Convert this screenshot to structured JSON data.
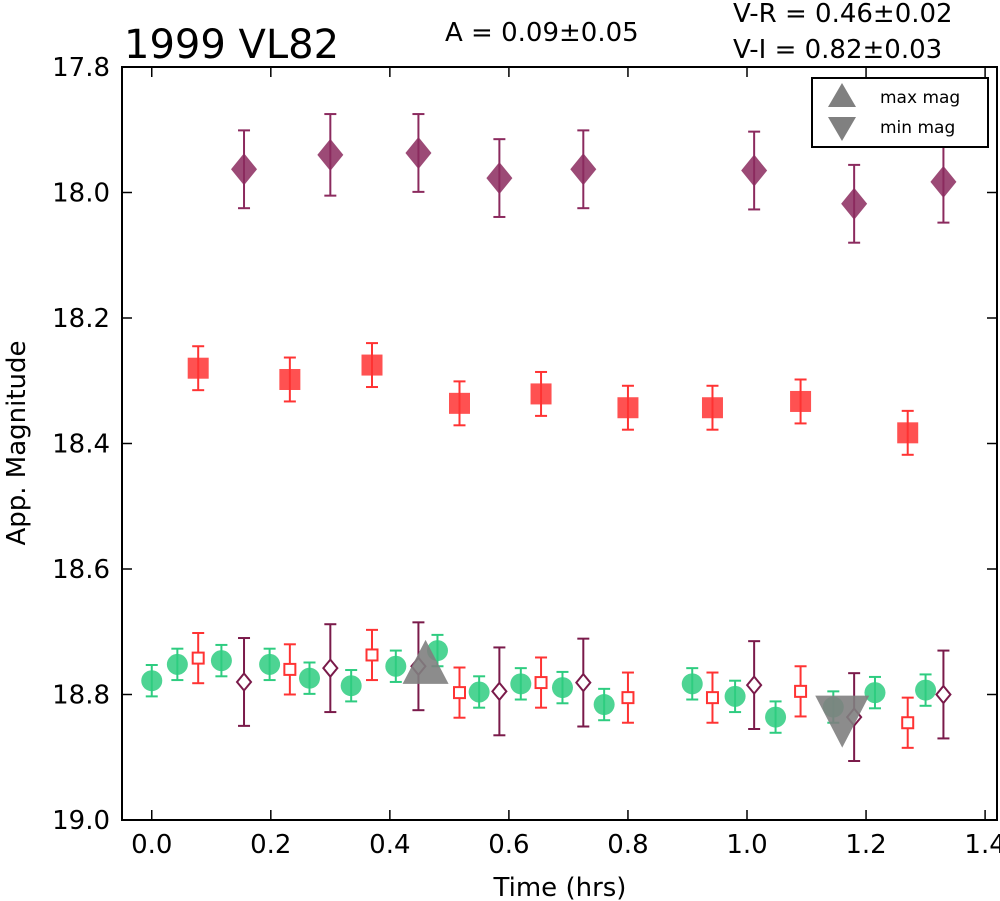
{
  "chart_data": {
    "type": "scatter",
    "title": "1999 VL82",
    "annotations": {
      "amplitude": "A  = 0.09±0.05",
      "v_r": "V-R = 0.46±0.02",
      "v_i": "V-I  = 0.82±0.03"
    },
    "xlabel": "Time (hrs)",
    "ylabel": "App. Magnitude",
    "xlim": [
      -0.05,
      1.42
    ],
    "ylim": [
      17.8,
      19.0
    ],
    "y_inverted": true,
    "xticks": [
      "0.0",
      "0.2",
      "0.4",
      "0.6",
      "0.8",
      "1.0",
      "1.2",
      "1.4"
    ],
    "yticks": [
      "17.8",
      "18.0",
      "18.2",
      "18.4",
      "18.6",
      "18.8",
      "19.0"
    ],
    "legend": {
      "placement": "top-right",
      "entries": [
        {
          "label": "max mag",
          "marker": "triangle-up"
        },
        {
          "label": "min mag",
          "marker": "triangle-down"
        }
      ]
    },
    "series": [
      {
        "marker": "diamond",
        "filled": true,
        "color": "#8b2a5e",
        "points": [
          {
            "x": 0.155,
            "y": 17.963,
            "err": 0.062
          },
          {
            "x": 0.3,
            "y": 17.94,
            "err": 0.065
          },
          {
            "x": 0.448,
            "y": 17.937,
            "err": 0.062
          },
          {
            "x": 0.584,
            "y": 17.977,
            "err": 0.062
          },
          {
            "x": 0.725,
            "y": 17.963,
            "err": 0.062
          },
          {
            "x": 1.012,
            "y": 17.965,
            "err": 0.062
          },
          {
            "x": 1.18,
            "y": 18.018,
            "err": 0.062
          },
          {
            "x": 1.33,
            "y": 17.983,
            "err": 0.065
          }
        ]
      },
      {
        "marker": "square",
        "filled": true,
        "color": "#ff3333",
        "points": [
          {
            "x": 0.078,
            "y": 18.28,
            "err": 0.035
          },
          {
            "x": 0.232,
            "y": 18.298,
            "err": 0.035
          },
          {
            "x": 0.37,
            "y": 18.275,
            "err": 0.035
          },
          {
            "x": 0.517,
            "y": 18.336,
            "err": 0.035
          },
          {
            "x": 0.654,
            "y": 18.321,
            "err": 0.035
          },
          {
            "x": 0.8,
            "y": 18.343,
            "err": 0.035
          },
          {
            "x": 0.942,
            "y": 18.343,
            "err": 0.035
          },
          {
            "x": 1.09,
            "y": 18.333,
            "err": 0.035
          },
          {
            "x": 1.27,
            "y": 18.383,
            "err": 0.035
          }
        ]
      },
      {
        "marker": "circle",
        "filled": true,
        "color": "#2ecc80",
        "points": [
          {
            "x": 0.0,
            "y": 18.778,
            "err": 0.025
          },
          {
            "x": 0.043,
            "y": 18.752,
            "err": 0.025
          },
          {
            "x": 0.117,
            "y": 18.746,
            "err": 0.025
          },
          {
            "x": 0.198,
            "y": 18.752,
            "err": 0.025
          },
          {
            "x": 0.265,
            "y": 18.774,
            "err": 0.025
          },
          {
            "x": 0.335,
            "y": 18.786,
            "err": 0.025
          },
          {
            "x": 0.41,
            "y": 18.755,
            "err": 0.025
          },
          {
            "x": 0.48,
            "y": 18.73,
            "err": 0.025
          },
          {
            "x": 0.55,
            "y": 18.796,
            "err": 0.025
          },
          {
            "x": 0.62,
            "y": 18.783,
            "err": 0.025
          },
          {
            "x": 0.69,
            "y": 18.789,
            "err": 0.025
          },
          {
            "x": 0.76,
            "y": 18.816,
            "err": 0.025
          },
          {
            "x": 0.908,
            "y": 18.783,
            "err": 0.025
          },
          {
            "x": 0.98,
            "y": 18.803,
            "err": 0.025
          },
          {
            "x": 1.048,
            "y": 18.836,
            "err": 0.025
          },
          {
            "x": 1.145,
            "y": 18.82,
            "err": 0.025
          },
          {
            "x": 1.215,
            "y": 18.797,
            "err": 0.025
          },
          {
            "x": 1.3,
            "y": 18.793,
            "err": 0.025
          }
        ]
      },
      {
        "marker": "square",
        "filled": false,
        "color": "#ff3333",
        "points": [
          {
            "x": 0.078,
            "y": 18.742,
            "err": 0.04
          },
          {
            "x": 0.232,
            "y": 18.76,
            "err": 0.04
          },
          {
            "x": 0.37,
            "y": 18.737,
            "err": 0.04
          },
          {
            "x": 0.517,
            "y": 18.797,
            "err": 0.04
          },
          {
            "x": 0.654,
            "y": 18.781,
            "err": 0.04
          },
          {
            "x": 0.8,
            "y": 18.805,
            "err": 0.04
          },
          {
            "x": 0.942,
            "y": 18.805,
            "err": 0.04
          },
          {
            "x": 1.09,
            "y": 18.795,
            "err": 0.04
          },
          {
            "x": 1.27,
            "y": 18.845,
            "err": 0.04
          }
        ]
      },
      {
        "marker": "diamond",
        "filled": false,
        "color": "#7a1a4a",
        "points": [
          {
            "x": 0.155,
            "y": 18.78,
            "err": 0.07
          },
          {
            "x": 0.3,
            "y": 18.758,
            "err": 0.07
          },
          {
            "x": 0.448,
            "y": 18.755,
            "err": 0.07
          },
          {
            "x": 0.584,
            "y": 18.795,
            "err": 0.07
          },
          {
            "x": 0.725,
            "y": 18.781,
            "err": 0.07
          },
          {
            "x": 1.012,
            "y": 18.785,
            "err": 0.07
          },
          {
            "x": 1.18,
            "y": 18.836,
            "err": 0.07
          },
          {
            "x": 1.33,
            "y": 18.8,
            "err": 0.07
          }
        ]
      }
    ],
    "extrema": [
      {
        "label": "max mag",
        "marker": "triangle-up",
        "color": "#808080",
        "x": 0.46,
        "y": 18.755
      },
      {
        "label": "min mag",
        "marker": "triangle-down",
        "color": "#808080",
        "x": 1.16,
        "y": 18.835
      }
    ]
  }
}
